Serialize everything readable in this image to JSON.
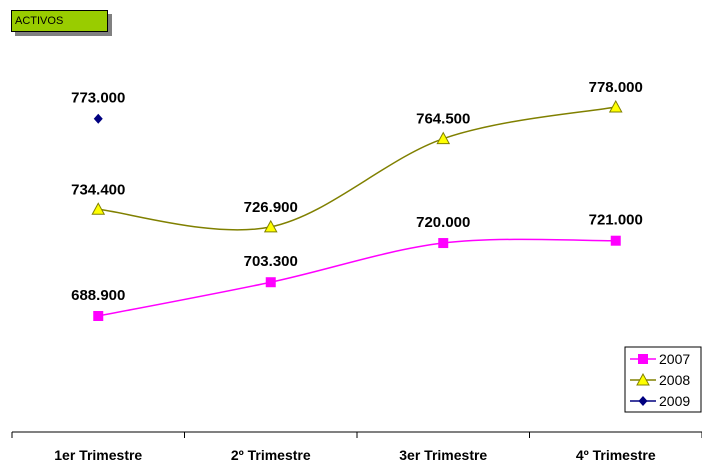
{
  "chart_data": {
    "type": "line",
    "title": "ACTIVOS",
    "categories": [
      "1er Trimestre",
      "2º Trimestre",
      "3er Trimestre",
      "4º Trimestre"
    ],
    "series": [
      {
        "name": "2007",
        "values": [
          688900,
          703300,
          720000,
          721000
        ],
        "labels": [
          "688.900",
          "703.300",
          "720.000",
          "721.000"
        ],
        "color": "#ff00ff",
        "marker": "square"
      },
      {
        "name": "2008",
        "values": [
          734400,
          726900,
          764500,
          778000
        ],
        "labels": [
          "734.400",
          "726.900",
          "764.500",
          "778.000"
        ],
        "color": "#808000",
        "marker": "triangle"
      },
      {
        "name": "2009",
        "values": [
          773000,
          null,
          null,
          null
        ],
        "labels": [
          "773.000",
          null,
          null,
          null
        ],
        "color": "#000080",
        "marker": "diamond"
      }
    ],
    "legend_position": "bottom-right",
    "grid": false,
    "smoothed": true
  }
}
